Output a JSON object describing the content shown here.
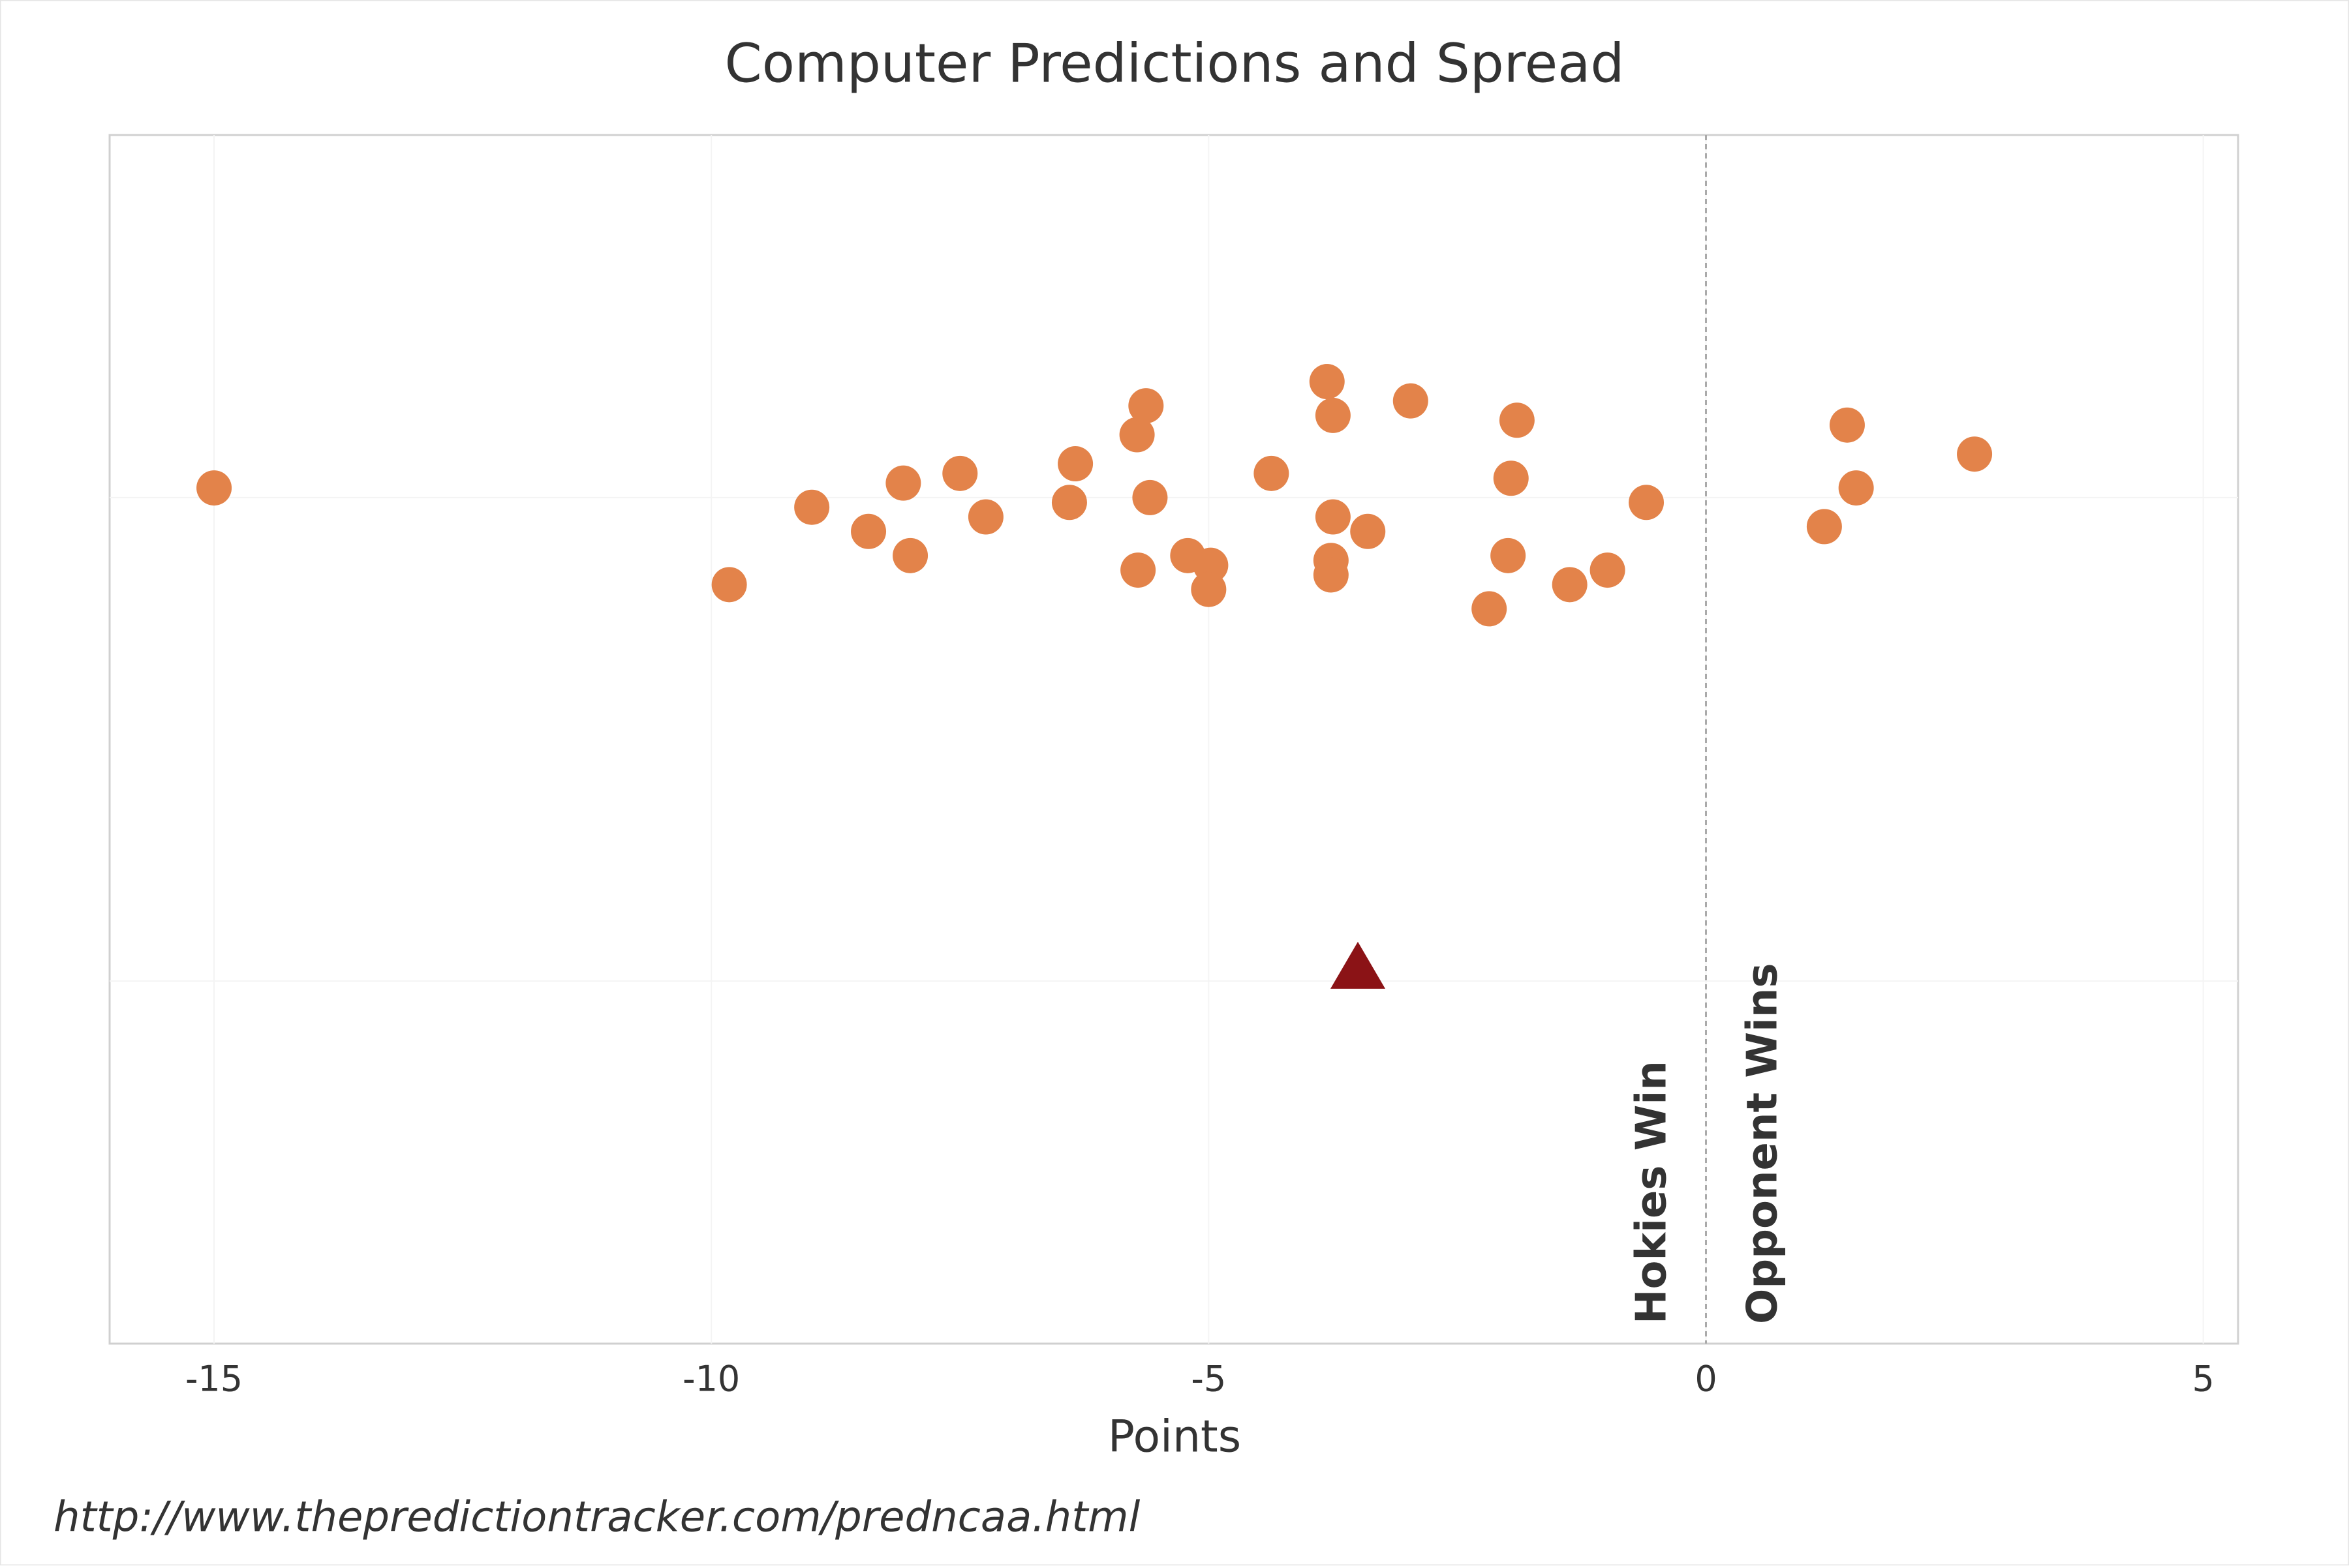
{
  "chart_data": {
    "type": "scatter",
    "title": "Computer Predictions and Spread",
    "x_label": "Points",
    "xlim": [
      -16.05,
      5.35
    ],
    "xticks": [
      -15,
      -10,
      -5,
      0,
      5
    ],
    "ylim": [
      0.25,
      2.75
    ],
    "yticks": [
      1,
      2
    ],
    "show_ytick_labels": false,
    "grid": true,
    "series": [
      {
        "color": "#e3834a",
        "marker": "circle",
        "x": [
          -15.0,
          -9.82,
          -8.99,
          -8.42,
          -8.07,
          -8.0,
          -7.5,
          -7.24,
          -6.4,
          -6.34,
          -5.72,
          -5.63,
          -5.71,
          -5.59,
          -5.21,
          -4.98,
          -5.0,
          -4.37,
          -3.81,
          -3.75,
          -3.75,
          -3.77,
          -3.77,
          -3.4,
          -2.97,
          -1.9,
          -1.96,
          -1.99,
          -2.18,
          -1.37,
          -0.99,
          -0.6,
          1.19,
          1.42,
          1.51,
          2.7
        ],
        "values": [
          2.02,
          1.82,
          1.98,
          1.93,
          2.03,
          1.88,
          2.05,
          1.96,
          1.99,
          2.07,
          2.13,
          2.19,
          1.85,
          2.0,
          1.88,
          1.86,
          1.81,
          2.05,
          2.24,
          2.17,
          1.96,
          1.87,
          1.84,
          1.93,
          2.2,
          2.16,
          2.04,
          1.88,
          1.77,
          1.82,
          1.85,
          1.99,
          1.94,
          2.15,
          2.02,
          2.09
        ]
      },
      {
        "color": "#8b1316",
        "marker": "triangle",
        "x": [
          -3.5
        ],
        "values": [
          1.03
        ]
      }
    ],
    "annotations": [
      "Hokies Win",
      "Opponent Wins"
    ],
    "source": "http://www.thepredictiontracker.com/predncaa.html"
  }
}
